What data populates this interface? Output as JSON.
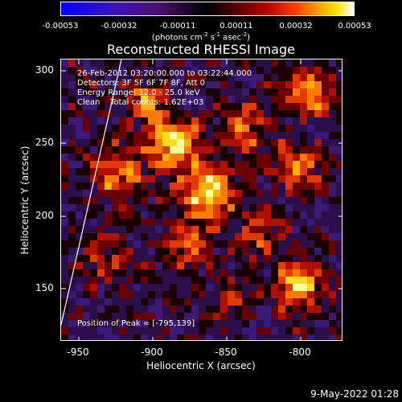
{
  "colorbar": {
    "ticks": [
      "-0.00053",
      "-0.00032",
      "-0.00011",
      "0.00011",
      "0.00032",
      "0.00053"
    ],
    "units_prefix": "(photons cm",
    "units_exp1": "-2",
    "units_mid": " s",
    "units_exp2": "-1",
    "units_mid2": " asec",
    "units_exp3": "-2",
    "units_suffix": ")"
  },
  "title": "Reconstructed RHESSI Image",
  "annotations": {
    "time_range": "26-Feb-2012 03:20:00.000 to 03:22:44.000",
    "detectors": "Detectors: 3F 5F 6F 7F 8F, Att 0",
    "energy": "Energy Range: 12.0 - 25.0 keV",
    "clean": "Clean    Total counts: 1.62E+03",
    "peak": "Position of Peak = [-795,139]"
  },
  "axes": {
    "xlabel": "Heliocentric X (arcsec)",
    "ylabel": "Heliocentric Y (arcsec)",
    "xticks": [
      "-950",
      "-900",
      "-850",
      "-800"
    ],
    "yticks": [
      "300",
      "250",
      "200",
      "150"
    ],
    "xrange": [
      -965,
      -775
    ],
    "yrange": [
      112,
      307
    ]
  },
  "footer": {
    "date": "9-May-2022 01:28"
  }
}
